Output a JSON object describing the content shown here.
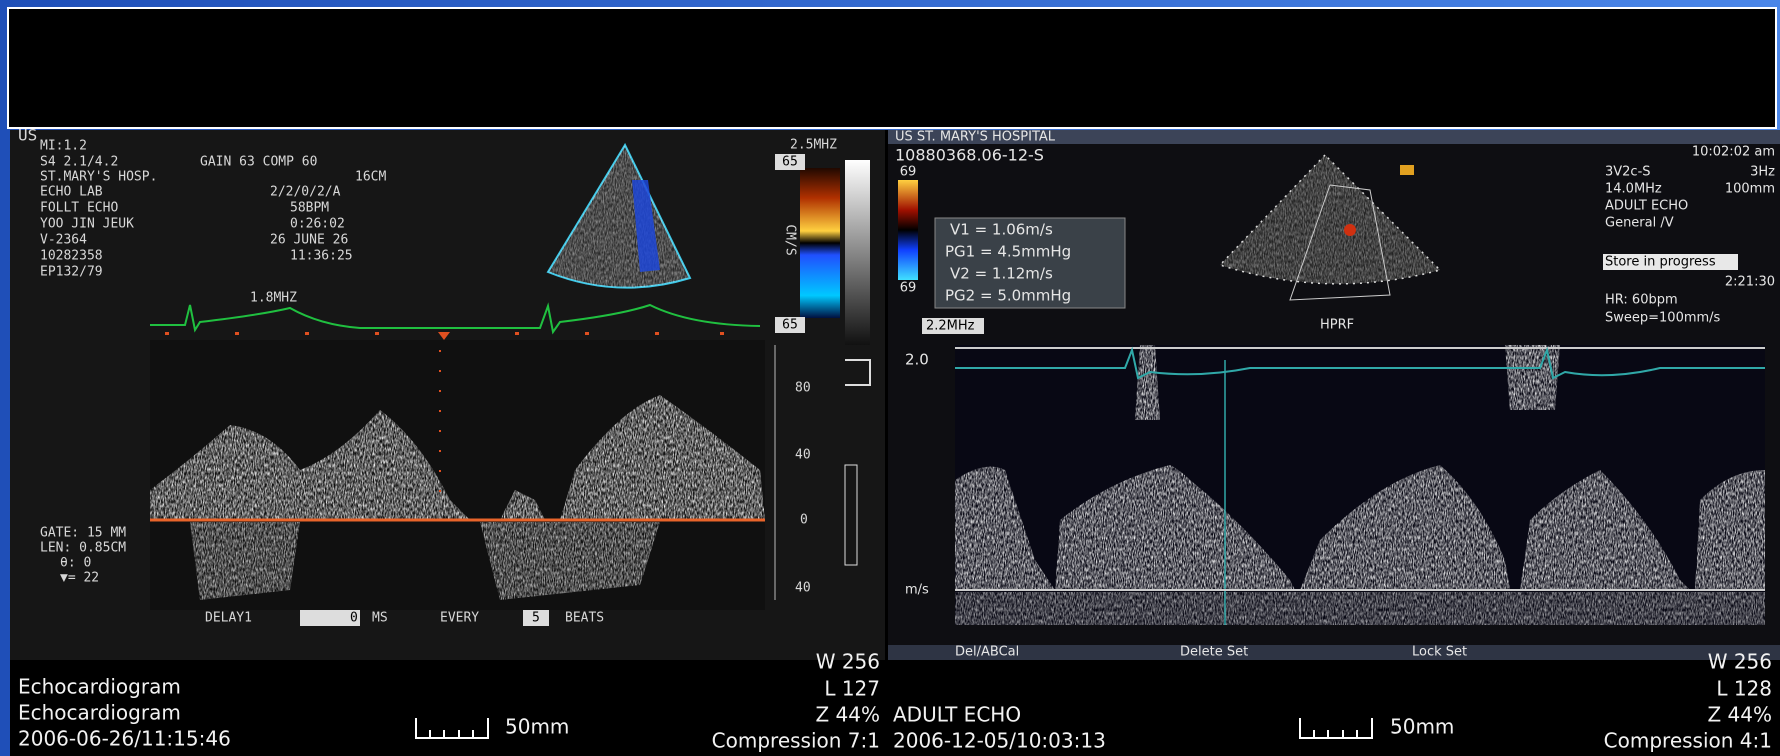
{
  "left_image": {
    "header": [
      "US",
      "MI:1.2",
      "S4 2.1/4.2",
      "GAIN 63 COMP 60",
      "ST.MARY'S HOSP.",
      "16CM",
      "ECHO LAB",
      "2/2/0/2/A",
      "FOLLT ECHO",
      "58BPM",
      "YOO JIN JEUK",
      "0:26:02",
      "V-2364",
      "26 JUNE 26",
      "10282358",
      "11:36:25",
      "EP132/79"
    ],
    "color_bar": {
      "frequency": "2.5MHZ",
      "top": "65",
      "bottom": "65",
      "unit": "CM/S"
    },
    "ecg_frequency": "1.8MHZ",
    "scale_labels": [
      "80",
      "40",
      "0",
      "40"
    ],
    "gate_info": [
      "GATE: 15 MM",
      "LEN: 0.85CM",
      "θ: 0",
      "▼= 22"
    ],
    "controls": [
      "DELAY1",
      "0",
      "MS",
      "EVERY",
      "5",
      "BEATS"
    ]
  },
  "left_caption": {
    "lines": [
      "Echocardiogram",
      "Echocardiogram",
      "2006-06-26/11:15:46"
    ],
    "scale": "50mm",
    "window": [
      "W 256",
      "L 127",
      "Z 44%",
      "Compression 7:1"
    ]
  },
  "right_image": {
    "header": "US ST. MARY'S HOSPITAL",
    "patient_id": "10880368.06-12-S",
    "measurements": [
      "V1 = 1.06m/s",
      "PG1 = 4.5mmHg",
      "V2 = 1.12m/s",
      "PG2 = 5.0mmHg"
    ],
    "color_bar_labels": [
      "69",
      "69"
    ],
    "info_left": [
      "3V2c-S",
      "14.0MHz",
      "ADULT ECHO",
      "General /V",
      "Store in progress",
      "HR: 60bpm",
      "Sweep=100mm/s"
    ],
    "info_right": [
      "10:02:02 am",
      "3Hz",
      "100mm",
      "2:21:30"
    ],
    "mode": "HPRF",
    "frequency": "2.2MHz",
    "scale_top": "2.0",
    "unit": "m/s",
    "softkeys": [
      "Del/ABCal",
      "Delete Set",
      "Lock Set"
    ]
  },
  "right_caption": {
    "lines": [
      "ADULT ECHO",
      "2006-12-05/10:03:13"
    ],
    "scale": "50mm",
    "window": [
      "W 256",
      "L 128",
      "Z 44%",
      "Compression 4:1"
    ]
  }
}
